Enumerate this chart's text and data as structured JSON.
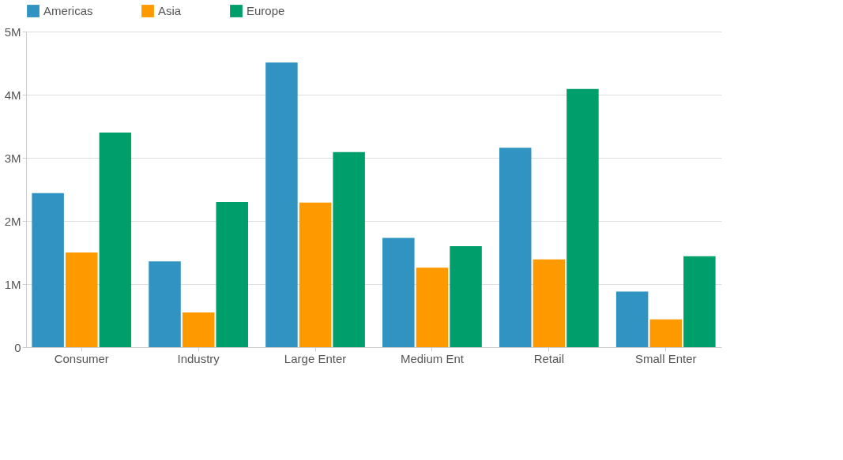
{
  "chart_data": {
    "type": "bar",
    "categories": [
      "Consumer",
      "Industry",
      "Large Enter",
      "Medium Ent",
      "Retail",
      "Small Enter"
    ],
    "series": [
      {
        "name": "Americas",
        "color": "#3193c1",
        "values": [
          2440000,
          1360000,
          4510000,
          1730000,
          3160000,
          880000
        ]
      },
      {
        "name": "Asia",
        "color": "#ff9900",
        "values": [
          1500000,
          550000,
          2290000,
          1260000,
          1390000,
          440000
        ]
      },
      {
        "name": "Europe",
        "color": "#009e6b",
        "values": [
          3400000,
          2300000,
          3090000,
          1600000,
          4090000,
          1440000
        ]
      }
    ],
    "ylim": [
      0,
      5000000
    ],
    "yticks": [
      0,
      {
        "value": 1000000,
        "label": "1M"
      },
      {
        "value": 2000000,
        "label": "2M"
      },
      {
        "value": 3000000,
        "label": "3M"
      },
      {
        "value": 4000000,
        "label": "4M"
      },
      {
        "value": 5000000,
        "label": "5M"
      }
    ],
    "grid": "y",
    "legend": "top left"
  }
}
